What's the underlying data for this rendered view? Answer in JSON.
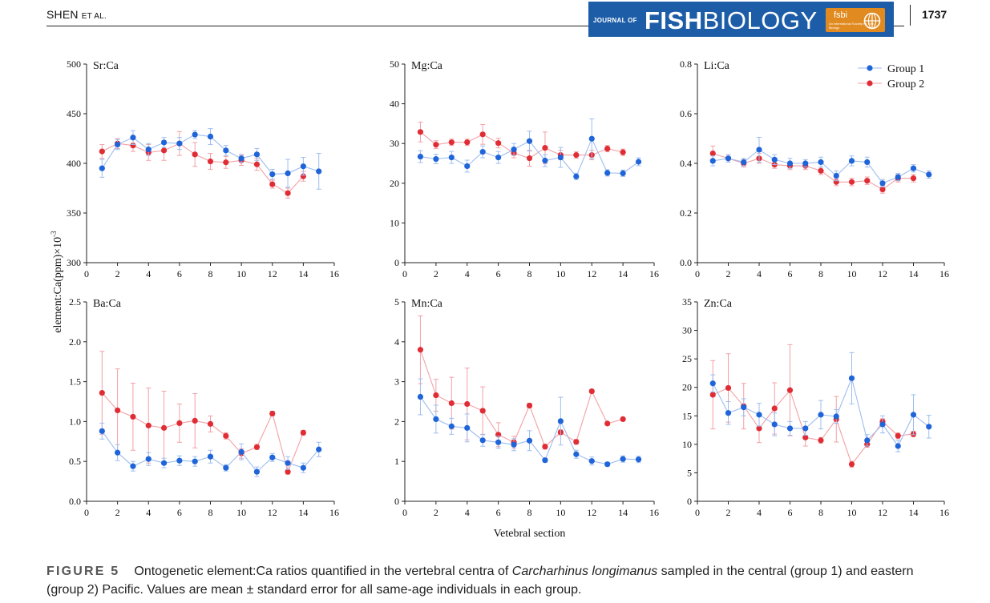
{
  "header": {
    "running_head_main": "SHEN",
    "running_head_small": "ET AL.",
    "journal_prefix": "JOURNAL OF",
    "journal_name_bold": "FISH",
    "journal_name_light": "BIOLOGY",
    "society_logo_text": "fsbi",
    "society_logo_subtext": "An international Society for Fish Biology",
    "page_number": "1737"
  },
  "figure": {
    "y_axis_label": "element:Ca(ppm)×10",
    "y_axis_label_exponent": "-3",
    "x_axis_label": "Vetebral section",
    "legend": [
      {
        "name": "Group 1",
        "color": "#1f64d8"
      },
      {
        "name": "Group 2",
        "color": "#e02d35"
      }
    ],
    "colors": {
      "group1": "#1f64d8",
      "group1_light": "#9dbdf0",
      "group2": "#e02d35",
      "group2_light": "#f2a0a5",
      "axis": "#222222"
    }
  },
  "chart_data": [
    {
      "type": "line",
      "title": "Sr:Ca",
      "xlim": [
        0,
        16
      ],
      "ylim": [
        300,
        500
      ],
      "xticks": [
        0,
        2,
        4,
        6,
        8,
        10,
        12,
        14,
        16
      ],
      "yticks": [
        300,
        350,
        400,
        450,
        500
      ],
      "ytick_labels": [
        "300",
        "350",
        "400",
        "450",
        "500"
      ],
      "series": [
        {
          "name": "Group 1",
          "x": [
            1,
            2,
            3,
            4,
            5,
            6,
            7,
            8,
            9,
            10,
            11,
            12,
            13,
            14,
            15
          ],
          "y": [
            395,
            419,
            426,
            414,
            421,
            420,
            429,
            427,
            413,
            405,
            409,
            389,
            390,
            397,
            392
          ],
          "err": [
            9,
            5,
            7,
            6,
            5,
            6,
            4,
            8,
            5,
            4,
            6,
            5,
            14,
            9,
            18
          ]
        },
        {
          "name": "Group 2",
          "x": [
            1,
            2,
            3,
            4,
            5,
            6,
            7,
            8,
            9,
            10,
            11,
            12,
            13,
            14
          ],
          "y": [
            412,
            420,
            418,
            411,
            413,
            420,
            409,
            402,
            401,
            403,
            399,
            379,
            370,
            387
          ],
          "err": [
            7,
            5,
            6,
            8,
            10,
            12,
            12,
            8,
            6,
            5,
            6,
            4,
            5,
            5
          ]
        }
      ]
    },
    {
      "type": "line",
      "title": "Mg:Ca",
      "xlim": [
        0,
        16
      ],
      "ylim": [
        0,
        50
      ],
      "xticks": [
        0,
        2,
        4,
        6,
        8,
        10,
        12,
        14,
        16
      ],
      "yticks": [
        0,
        10,
        20,
        30,
        40,
        50
      ],
      "ytick_labels": [
        "0",
        "10",
        "20",
        "30",
        "40",
        "50"
      ],
      "series": [
        {
          "name": "Group 1",
          "x": [
            1,
            2,
            3,
            4,
            5,
            6,
            7,
            8,
            9,
            10,
            11,
            12,
            13,
            14,
            15
          ],
          "y": [
            26.7,
            26.1,
            26.5,
            24.3,
            27.9,
            26.5,
            28.5,
            30.6,
            25.7,
            26.5,
            21.7,
            31.2,
            22.6,
            22.5,
            25.4
          ],
          "err": [
            1.5,
            1.2,
            1.5,
            1.5,
            1.5,
            1.5,
            1.5,
            2.5,
            1.5,
            2.5,
            0.8,
            5,
            0.8,
            0.8,
            1
          ]
        },
        {
          "name": "Group 2",
          "x": [
            1,
            2,
            3,
            4,
            5,
            6,
            7,
            8,
            9,
            10,
            11,
            12,
            13,
            14
          ],
          "y": [
            32.9,
            29.7,
            30.3,
            30.3,
            32.3,
            30.1,
            27.6,
            26.3,
            28.9,
            27.1,
            27.1,
            27.1,
            28.7,
            27.8
          ],
          "err": [
            2.5,
            1,
            0.8,
            0.8,
            2.5,
            1.2,
            1.2,
            2,
            4,
            1.2,
            0.8,
            1.2,
            0.8,
            0.8
          ]
        }
      ]
    },
    {
      "type": "line",
      "title": "Li:Ca",
      "xlim": [
        0,
        16
      ],
      "ylim": [
        0,
        0.8
      ],
      "xticks": [
        0,
        2,
        4,
        6,
        8,
        10,
        12,
        14,
        16
      ],
      "yticks": [
        0,
        0.2,
        0.4,
        0.6,
        0.8
      ],
      "ytick_labels": [
        "0.0",
        "0.2",
        "0.4",
        "0.6",
        "0.8"
      ],
      "legend_position": "top-right",
      "series": [
        {
          "name": "Group 1",
          "x": [
            1,
            2,
            3,
            4,
            5,
            6,
            7,
            8,
            9,
            10,
            11,
            12,
            13,
            14,
            15
          ],
          "y": [
            0.41,
            0.42,
            0.405,
            0.455,
            0.415,
            0.4,
            0.4,
            0.405,
            0.35,
            0.41,
            0.405,
            0.32,
            0.345,
            0.38,
            0.355
          ],
          "err": [
            0.02,
            0.015,
            0.015,
            0.05,
            0.02,
            0.02,
            0.015,
            0.02,
            0.02,
            0.02,
            0.02,
            0.015,
            0.015,
            0.015,
            0.015
          ]
        },
        {
          "name": "Group 2",
          "x": [
            1,
            2,
            3,
            4,
            5,
            6,
            7,
            8,
            9,
            10,
            11,
            12,
            13,
            14
          ],
          "y": [
            0.44,
            0.42,
            0.4,
            0.42,
            0.395,
            0.39,
            0.39,
            0.37,
            0.325,
            0.325,
            0.33,
            0.295,
            0.34,
            0.34
          ],
          "err": [
            0.03,
            0.015,
            0.015,
            0.02,
            0.015,
            0.015,
            0.015,
            0.015,
            0.015,
            0.015,
            0.015,
            0.015,
            0.015,
            0.015
          ]
        }
      ]
    },
    {
      "type": "line",
      "title": "Ba:Ca",
      "xlim": [
        0,
        16
      ],
      "ylim": [
        0,
        2.5
      ],
      "xticks": [
        0,
        2,
        4,
        6,
        8,
        10,
        12,
        14,
        16
      ],
      "yticks": [
        0,
        0.5,
        1.0,
        1.5,
        2.0,
        2.5
      ],
      "ytick_labels": [
        "0.0",
        "0.5",
        "1.0",
        "1.5",
        "2.0",
        "2.5"
      ],
      "series": [
        {
          "name": "Group 1",
          "x": [
            1,
            2,
            3,
            4,
            5,
            6,
            7,
            8,
            9,
            10,
            11,
            12,
            13,
            14,
            15
          ],
          "y": [
            0.88,
            0.61,
            0.44,
            0.53,
            0.48,
            0.51,
            0.5,
            0.56,
            0.42,
            0.62,
            0.37,
            0.55,
            0.48,
            0.42,
            0.65
          ],
          "err": [
            0.1,
            0.1,
            0.06,
            0.08,
            0.06,
            0.06,
            0.06,
            0.08,
            0.04,
            0.1,
            0.06,
            0.05,
            0.08,
            0.06,
            0.09
          ]
        },
        {
          "name": "Group 2",
          "x": [
            1,
            2,
            3,
            4,
            5,
            6,
            7,
            8,
            9,
            10,
            11,
            12,
            13,
            14
          ],
          "y": [
            1.36,
            1.14,
            1.06,
            0.95,
            0.92,
            0.98,
            1.01,
            0.97,
            0.82,
            0.6,
            0.68,
            1.1,
            0.37,
            0.86
          ],
          "err": [
            0.52,
            0.52,
            0.42,
            0.47,
            0.46,
            0.24,
            0.34,
            0.1,
            0.04,
            0.06,
            0.03,
            0.03,
            0.03,
            0.03
          ]
        }
      ]
    },
    {
      "type": "line",
      "title": "Mn:Ca",
      "xlim": [
        0,
        16
      ],
      "ylim": [
        0,
        5
      ],
      "xticks": [
        0,
        2,
        4,
        6,
        8,
        10,
        12,
        14,
        16
      ],
      "yticks": [
        0,
        1,
        2,
        3,
        4,
        5
      ],
      "ytick_labels": [
        "0",
        "1",
        "2",
        "3",
        "4",
        "5"
      ],
      "xlabel": "Vetebral section",
      "series": [
        {
          "name": "Group 1",
          "x": [
            1,
            2,
            3,
            4,
            5,
            6,
            7,
            8,
            9,
            10,
            11,
            12,
            13,
            14,
            15
          ],
          "y": [
            2.62,
            2.06,
            1.88,
            1.84,
            1.53,
            1.48,
            1.42,
            1.52,
            1.03,
            2.01,
            1.18,
            1.01,
            0.93,
            1.06,
            1.05
          ],
          "err": [
            0.45,
            0.35,
            0.2,
            0.35,
            0.15,
            0.15,
            0.15,
            0.25,
            0.05,
            0.6,
            0.1,
            0.1,
            0.05,
            0.08,
            0.08
          ]
        },
        {
          "name": "Group 2",
          "x": [
            1,
            2,
            3,
            4,
            5,
            6,
            7,
            8,
            9,
            10,
            11,
            12,
            13,
            14
          ],
          "y": [
            3.8,
            2.66,
            2.46,
            2.44,
            2.27,
            1.67,
            1.48,
            2.4,
            1.37,
            1.73,
            1.49,
            2.76,
            1.95,
            2.06
          ],
          "err": [
            0.85,
            0.4,
            0.65,
            0.9,
            0.6,
            0.3,
            0.15,
            0.06,
            0.06,
            0.06,
            0.06,
            0.04,
            0.04,
            0.04
          ]
        }
      ]
    },
    {
      "type": "line",
      "title": "Zn:Ca",
      "xlim": [
        0,
        16
      ],
      "ylim": [
        0,
        35
      ],
      "xticks": [
        0,
        2,
        4,
        6,
        8,
        10,
        12,
        14,
        16
      ],
      "yticks": [
        0,
        5,
        10,
        15,
        20,
        25,
        30,
        35
      ],
      "ytick_labels": [
        "0",
        "5",
        "10",
        "15",
        "20",
        "25",
        "30",
        "35"
      ],
      "series": [
        {
          "name": "Group 1",
          "x": [
            1,
            2,
            3,
            4,
            5,
            6,
            7,
            8,
            9,
            10,
            11,
            12,
            13,
            14,
            15
          ],
          "y": [
            20.7,
            15.5,
            16.5,
            15.2,
            13.5,
            12.8,
            12.8,
            15.2,
            14.9,
            21.6,
            10.7,
            13.5,
            9.7,
            15.2,
            13.1
          ],
          "err": [
            1.5,
            2,
            1.5,
            2,
            2,
            1.2,
            1.2,
            2.5,
            1.2,
            4.5,
            1,
            1.5,
            1,
            3.5,
            2
          ]
        },
        {
          "name": "Group 2",
          "x": [
            1,
            2,
            3,
            4,
            5,
            6,
            7,
            8,
            9,
            10,
            11,
            12,
            13,
            14
          ],
          "y": [
            18.7,
            19.9,
            16.7,
            12.8,
            16.3,
            19.5,
            11.2,
            10.7,
            14.4,
            6.5,
            10.0,
            14.0,
            11.5,
            11.8
          ],
          "err": [
            6,
            6,
            4,
            2.5,
            4.5,
            8,
            1.5,
            0.5,
            4,
            0.5,
            0.5,
            0.5,
            0.5,
            0.5
          ]
        }
      ]
    }
  ],
  "caption": {
    "label": "FIGURE 5",
    "text_before_species": "Ontogenetic element:Ca ratios quantified in the vertebral centra of ",
    "species": "Carcharhinus longimanus",
    "text_after_species": " sampled in the central (group 1) and eastern (group 2) Pacific. Values are mean ± standard error for all same-age individuals in each group."
  }
}
